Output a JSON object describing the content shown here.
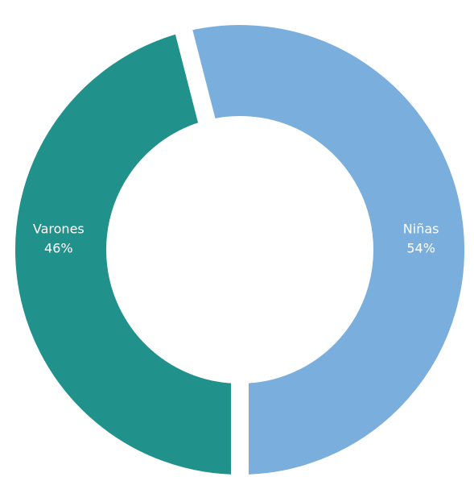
{
  "chart_data": {
    "type": "donut",
    "categories": [
      "Varones",
      "Niñas"
    ],
    "values": [
      46,
      54
    ],
    "value_labels": [
      "46%",
      "54%"
    ],
    "colors": [
      "#21918c",
      "#7aaedc"
    ]
  }
}
